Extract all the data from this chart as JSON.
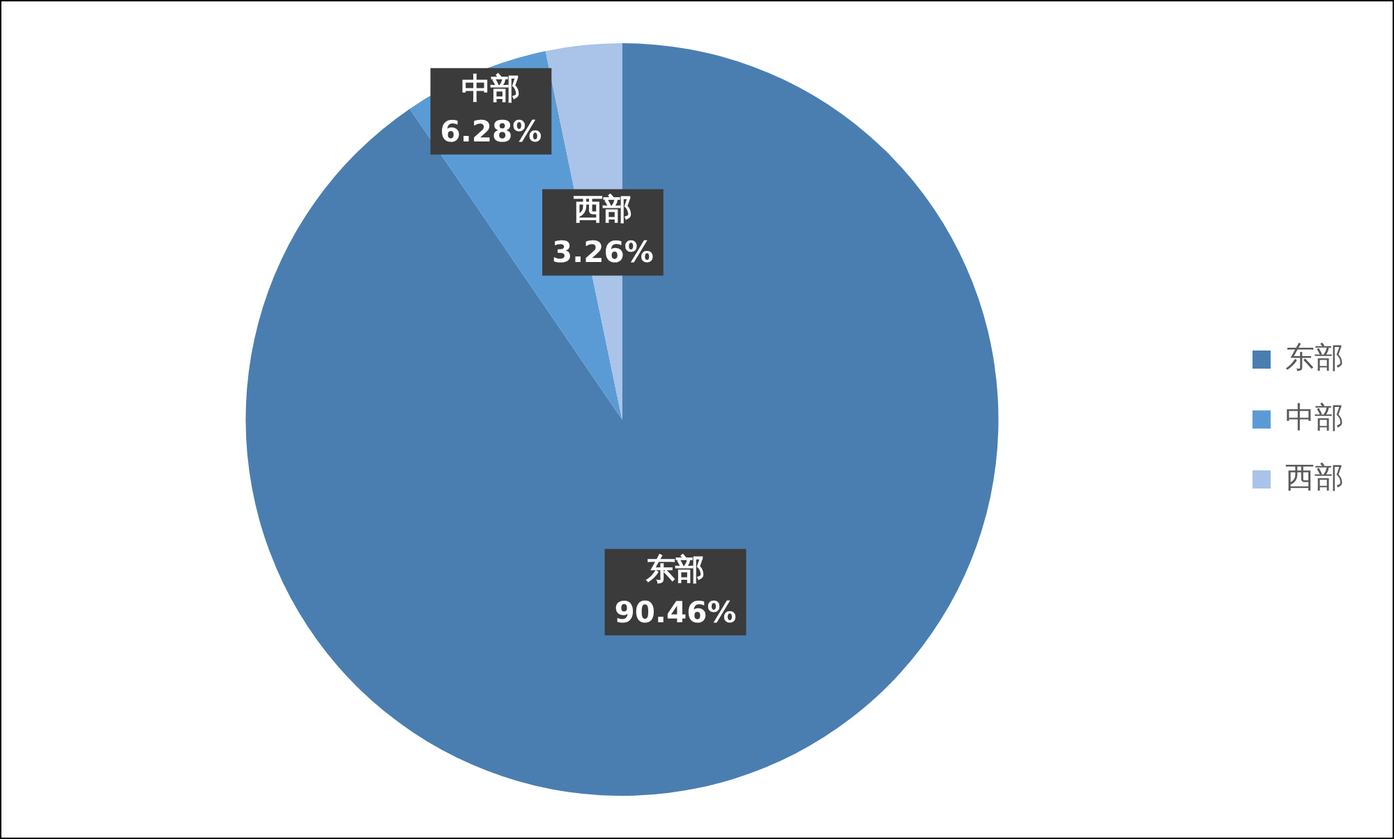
{
  "chart_data": {
    "type": "pie",
    "categories": [
      "东部",
      "中部",
      "西部"
    ],
    "values": [
      90.46,
      6.28,
      3.26
    ],
    "colors": [
      "#4a7eb1",
      "#5b9bd5",
      "#a9c4e8"
    ],
    "value_labels": [
      "90.46%",
      "6.28%",
      "3.26%"
    ],
    "legend": "right"
  }
}
